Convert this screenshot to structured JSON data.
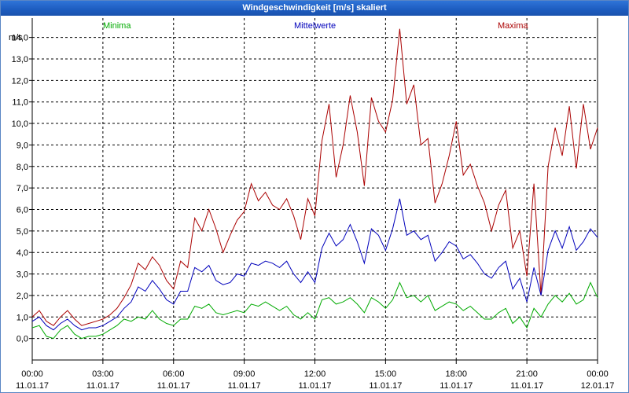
{
  "window": {
    "title": "Windgeschwindigkeit [m/s] skaliert"
  },
  "colors": {
    "minima": "#00aa00",
    "mittel": "#0000bb",
    "maxima": "#aa0000",
    "grid": "#000000"
  },
  "chart_data": {
    "type": "line",
    "title": "Windgeschwindigkeit [m/s] skaliert",
    "ylabel": "m/s",
    "ylim": [
      -1.0,
      14.9
    ],
    "xlim": [
      0,
      24
    ],
    "y_ticks": [
      0,
      1,
      2,
      3,
      4,
      5,
      6,
      7,
      8,
      9,
      10,
      11,
      12,
      13,
      14
    ],
    "y_tick_labels": [
      "0,0",
      "1,0",
      "2,0",
      "3,0",
      "4,0",
      "5,0",
      "6,0",
      "7,0",
      "8,0",
      "9,0",
      "10,0",
      "11,0",
      "12,0",
      "13,0",
      "14,0"
    ],
    "x_ticks": [
      {
        "hours": 0,
        "time": "00:00",
        "date": "11.01.17"
      },
      {
        "hours": 3,
        "time": "03:00",
        "date": "11.01.17"
      },
      {
        "hours": 6,
        "time": "06:00",
        "date": "11.01.17"
      },
      {
        "hours": 9,
        "time": "09:00",
        "date": "11.01.17"
      },
      {
        "hours": 12,
        "time": "12:00",
        "date": "11.01.17"
      },
      {
        "hours": 15,
        "time": "15:00",
        "date": "11.01.17"
      },
      {
        "hours": 18,
        "time": "18:00",
        "date": "11.01.17"
      },
      {
        "hours": 21,
        "time": "21:00",
        "date": "11.01.17"
      },
      {
        "hours": 24,
        "time": "00:00",
        "date": "12.01.17"
      }
    ],
    "legend": [
      "Minima",
      "Mittelwerte",
      "Maxima"
    ],
    "series": [
      {
        "name": "Maxima",
        "color": "#aa0000",
        "x": [
          0,
          0.3,
          0.6,
          0.9,
          1.2,
          1.5,
          1.8,
          2.1,
          2.4,
          2.7,
          3,
          3.3,
          3.6,
          3.9,
          4.2,
          4.5,
          4.8,
          5.1,
          5.4,
          5.7,
          6,
          6.3,
          6.6,
          6.9,
          7.2,
          7.5,
          7.8,
          8.1,
          8.4,
          8.7,
          9,
          9.3,
          9.6,
          9.9,
          10.2,
          10.5,
          10.8,
          11.1,
          11.4,
          11.7,
          12,
          12.3,
          12.6,
          12.9,
          13.2,
          13.5,
          13.8,
          14.1,
          14.4,
          14.7,
          15,
          15.3,
          15.6,
          15.9,
          16.2,
          16.5,
          16.8,
          17.1,
          17.4,
          17.7,
          18,
          18.3,
          18.6,
          18.9,
          19.2,
          19.5,
          19.8,
          20.1,
          20.4,
          20.7,
          21,
          21.3,
          21.6,
          21.9,
          22.2,
          22.5,
          22.8,
          23.1,
          23.4,
          23.7,
          24
        ],
        "values": [
          1.0,
          1.3,
          0.8,
          0.6,
          1.0,
          1.3,
          0.9,
          0.6,
          0.7,
          0.8,
          0.9,
          1.1,
          1.4,
          1.9,
          2.5,
          3.5,
          3.2,
          3.8,
          3.4,
          2.7,
          2.3,
          3.6,
          3.3,
          5.6,
          5.0,
          6.0,
          5.1,
          4.0,
          4.8,
          5.5,
          5.9,
          7.2,
          6.4,
          6.8,
          6.2,
          6.0,
          6.5,
          5.7,
          4.6,
          6.5,
          5.7,
          9.2,
          10.9,
          7.5,
          9.0,
          11.3,
          9.6,
          7.1,
          11.2,
          10.1,
          9.6,
          11.1,
          14.4,
          10.9,
          11.8,
          9.0,
          9.3,
          6.3,
          7.2,
          8.5,
          10.1,
          7.6,
          8.1,
          7.1,
          6.3,
          5.0,
          6.2,
          6.9,
          4.2,
          5.0,
          2.9,
          7.2,
          2.0,
          8.0,
          9.8,
          8.5,
          10.8,
          7.9,
          10.9,
          8.8,
          9.8
        ]
      },
      {
        "name": "Mittelwerte",
        "color": "#0000bb",
        "x": [
          0,
          0.3,
          0.6,
          0.9,
          1.2,
          1.5,
          1.8,
          2.1,
          2.4,
          2.7,
          3,
          3.3,
          3.6,
          3.9,
          4.2,
          4.5,
          4.8,
          5.1,
          5.4,
          5.7,
          6,
          6.3,
          6.6,
          6.9,
          7.2,
          7.5,
          7.8,
          8.1,
          8.4,
          8.7,
          9,
          9.3,
          9.6,
          9.9,
          10.2,
          10.5,
          10.8,
          11.1,
          11.4,
          11.7,
          12,
          12.3,
          12.6,
          12.9,
          13.2,
          13.5,
          13.8,
          14.1,
          14.4,
          14.7,
          15,
          15.3,
          15.6,
          15.9,
          16.2,
          16.5,
          16.8,
          17.1,
          17.4,
          17.7,
          18,
          18.3,
          18.6,
          18.9,
          19.2,
          19.5,
          19.8,
          20.1,
          20.4,
          20.7,
          21,
          21.3,
          21.6,
          21.9,
          22.2,
          22.5,
          22.8,
          23.1,
          23.4,
          23.7,
          24
        ],
        "values": [
          0.8,
          1.0,
          0.6,
          0.4,
          0.7,
          0.9,
          0.6,
          0.4,
          0.5,
          0.5,
          0.6,
          0.8,
          1.0,
          1.4,
          1.7,
          2.4,
          2.2,
          2.7,
          2.3,
          1.8,
          1.6,
          2.2,
          2.2,
          3.3,
          3.1,
          3.4,
          2.7,
          2.5,
          2.6,
          3.0,
          2.9,
          3.5,
          3.4,
          3.6,
          3.5,
          3.3,
          3.6,
          3.0,
          2.6,
          3.1,
          2.6,
          4.2,
          4.9,
          4.3,
          4.6,
          5.3,
          4.5,
          3.5,
          5.1,
          4.8,
          4.1,
          5.1,
          6.5,
          4.8,
          5.0,
          4.6,
          4.8,
          3.6,
          4.0,
          4.5,
          4.3,
          3.7,
          3.9,
          3.5,
          3.0,
          2.8,
          3.3,
          3.6,
          2.3,
          2.8,
          1.7,
          3.3,
          2.0,
          4.1,
          5.0,
          4.2,
          5.2,
          4.1,
          4.5,
          5.1,
          4.7
        ]
      },
      {
        "name": "Minima",
        "color": "#00aa00",
        "x": [
          0,
          0.3,
          0.6,
          0.9,
          1.2,
          1.5,
          1.8,
          2.1,
          2.4,
          2.7,
          3,
          3.3,
          3.6,
          3.9,
          4.2,
          4.5,
          4.8,
          5.1,
          5.4,
          5.7,
          6,
          6.3,
          6.6,
          6.9,
          7.2,
          7.5,
          7.8,
          8.1,
          8.4,
          8.7,
          9,
          9.3,
          9.6,
          9.9,
          10.2,
          10.5,
          10.8,
          11.1,
          11.4,
          11.7,
          12,
          12.3,
          12.6,
          12.9,
          13.2,
          13.5,
          13.8,
          14.1,
          14.4,
          14.7,
          15,
          15.3,
          15.6,
          15.9,
          16.2,
          16.5,
          16.8,
          17.1,
          17.4,
          17.7,
          18,
          18.3,
          18.6,
          18.9,
          19.2,
          19.5,
          19.8,
          20.1,
          20.4,
          20.7,
          21,
          21.3,
          21.6,
          21.9,
          22.2,
          22.5,
          22.8,
          23.1,
          23.4,
          23.7,
          24
        ],
        "values": [
          0.5,
          0.6,
          0.1,
          0.0,
          0.4,
          0.6,
          0.2,
          0.0,
          0.1,
          0.1,
          0.2,
          0.4,
          0.6,
          0.9,
          0.8,
          1.0,
          0.9,
          1.3,
          0.9,
          0.7,
          0.6,
          0.9,
          0.9,
          1.5,
          1.4,
          1.6,
          1.2,
          1.1,
          1.2,
          1.3,
          1.2,
          1.6,
          1.5,
          1.7,
          1.5,
          1.3,
          1.5,
          1.1,
          0.9,
          1.2,
          0.9,
          1.8,
          1.9,
          1.6,
          1.7,
          1.9,
          1.6,
          1.2,
          1.9,
          1.7,
          1.4,
          1.8,
          2.6,
          1.9,
          2.0,
          1.7,
          2.0,
          1.3,
          1.5,
          1.7,
          1.6,
          1.3,
          1.5,
          1.2,
          0.9,
          0.9,
          1.2,
          1.4,
          0.7,
          1.0,
          0.5,
          1.4,
          1.0,
          1.6,
          2.0,
          1.7,
          2.1,
          1.6,
          1.8,
          2.6,
          1.9
        ]
      }
    ]
  }
}
